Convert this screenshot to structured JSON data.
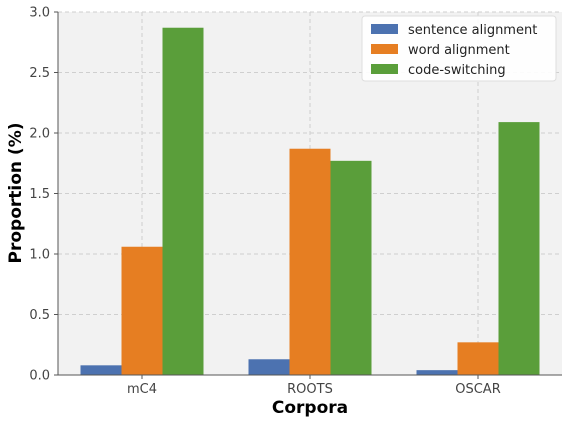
{
  "chart_data": {
    "type": "bar",
    "title": "",
    "xlabel": "Corpora",
    "ylabel": "Proportion (%)",
    "categories": [
      "mC4",
      "ROOTS",
      "OSCAR"
    ],
    "series": [
      {
        "name": "sentence alignment",
        "color": "#4c72b0",
        "values": [
          0.08,
          0.13,
          0.04
        ]
      },
      {
        "name": "word alignment",
        "color": "#e67e22",
        "values": [
          1.06,
          1.87,
          0.27
        ]
      },
      {
        "name": "code-switching",
        "color": "#5a9e3a",
        "values": [
          2.87,
          1.77,
          2.09
        ]
      }
    ],
    "ylim": [
      0,
      3.0
    ],
    "yticks": [
      "0.0",
      "0.5",
      "1.0",
      "1.5",
      "2.0",
      "2.5",
      "3.0"
    ],
    "grid": true,
    "legend_position": "top-right",
    "plot_background": "#f2f2f2"
  }
}
